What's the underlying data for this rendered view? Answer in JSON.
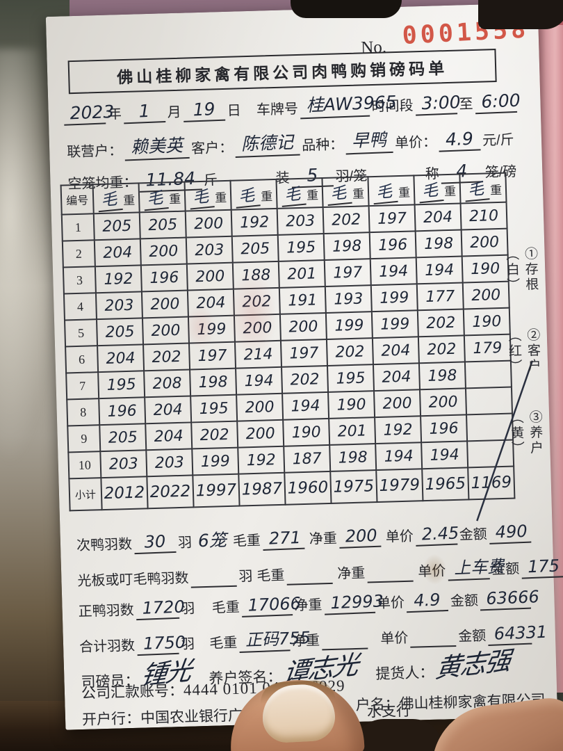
{
  "serial": {
    "label": "No.",
    "number": "0001558"
  },
  "title": "佛山桂柳家禽有限公司肉鸭购销磅码单",
  "colors": {
    "stamp_red": "#cf4736",
    "ink_blue_black": "#1f2738",
    "copy_strip_pink": "#dfa2a8"
  },
  "field_lines": [
    {
      "name": "date-plate-line",
      "segments": [
        {
          "k": "h",
          "t": "2023"
        },
        {
          "k": "p",
          "t": "年"
        },
        {
          "k": "h",
          "t": "1"
        },
        {
          "k": "p",
          "t": "月"
        },
        {
          "k": "h",
          "t": "19"
        },
        {
          "k": "p",
          "t": "日"
        },
        {
          "k": "gap"
        },
        {
          "k": "p",
          "t": "车牌号"
        },
        {
          "k": "h",
          "t": "桂AW3965"
        },
        {
          "k": "p",
          "t": "时间段"
        },
        {
          "k": "h",
          "t": "3:00"
        },
        {
          "k": "p",
          "t": "至"
        },
        {
          "k": "h",
          "t": "6:00"
        }
      ]
    },
    {
      "name": "parties-line",
      "segments": [
        {
          "k": "p",
          "t": "联营户："
        },
        {
          "k": "h",
          "t": "赖美英"
        },
        {
          "k": "p",
          "t": "客户："
        },
        {
          "k": "h",
          "t": "陈德记"
        },
        {
          "k": "p",
          "t": "品种："
        },
        {
          "k": "h",
          "t": "早鸭"
        },
        {
          "k": "p",
          "t": "单价："
        },
        {
          "k": "h",
          "t": "4.9"
        },
        {
          "k": "p",
          "t": "元/斤"
        }
      ]
    },
    {
      "name": "cage-line",
      "segments": [
        {
          "k": "p",
          "t": "空笼均重："
        },
        {
          "k": "h",
          "t": "11.84"
        },
        {
          "k": "p",
          "t": "斤"
        },
        {
          "k": "gap"
        },
        {
          "k": "p",
          "t": "装"
        },
        {
          "k": "h",
          "t": "5"
        },
        {
          "k": "p",
          "t": "羽/笼"
        },
        {
          "k": "gap"
        },
        {
          "k": "p",
          "t": "称"
        },
        {
          "k": "h",
          "t": "4"
        },
        {
          "k": "p",
          "t": "笼/磅"
        }
      ]
    }
  ],
  "table": {
    "corner_label": "编号",
    "header_hand": "毛",
    "header_print": "重",
    "columns": 9,
    "rows": [
      {
        "id": "1",
        "values": [
          "205",
          "205",
          "200",
          "192",
          "203",
          "202",
          "197",
          "204",
          "210"
        ]
      },
      {
        "id": "2",
        "values": [
          "204",
          "200",
          "203",
          "205",
          "195",
          "198",
          "196",
          "198",
          "200"
        ]
      },
      {
        "id": "3",
        "values": [
          "192",
          "196",
          "200",
          "188",
          "201",
          "197",
          "194",
          "194",
          "190"
        ]
      },
      {
        "id": "4",
        "values": [
          "203",
          "200",
          "204",
          "202",
          "191",
          "193",
          "199",
          "177",
          "200"
        ]
      },
      {
        "id": "5",
        "values": [
          "205",
          "200",
          "199",
          "200",
          "200",
          "199",
          "199",
          "202",
          "190"
        ]
      },
      {
        "id": "6",
        "values": [
          "204",
          "202",
          "197",
          "214",
          "197",
          "202",
          "204",
          "202",
          "179"
        ]
      },
      {
        "id": "7",
        "values": [
          "195",
          "208",
          "198",
          "194",
          "202",
          "195",
          "204",
          "198",
          ""
        ]
      },
      {
        "id": "8",
        "values": [
          "196",
          "204",
          "195",
          "200",
          "194",
          "190",
          "200",
          "200",
          ""
        ]
      },
      {
        "id": "9",
        "values": [
          "205",
          "204",
          "202",
          "200",
          "190",
          "201",
          "192",
          "196",
          ""
        ]
      },
      {
        "id": "10",
        "values": [
          "203",
          "203",
          "199",
          "192",
          "187",
          "198",
          "194",
          "194",
          ""
        ]
      }
    ],
    "subtotal": {
      "id": "小计",
      "values": [
        "2012",
        "2022",
        "1997",
        "1987",
        "1960",
        "1975",
        "1979",
        "1965",
        "1169"
      ]
    }
  },
  "side_labels": [
    "①存根（白）",
    "②客户（红）",
    "③养户（黄）"
  ],
  "summary_lines": [
    {
      "name": "cull-duck-line",
      "segments": [
        {
          "k": "p",
          "t": "次鸭羽数"
        },
        {
          "k": "h",
          "t": "30"
        },
        {
          "k": "p",
          "t": "羽"
        },
        {
          "k": "hp",
          "t": "6笼"
        },
        {
          "k": "p",
          "t": "毛重"
        },
        {
          "k": "h",
          "t": "271"
        },
        {
          "k": "gap"
        },
        {
          "k": "p",
          "t": "净重"
        },
        {
          "k": "h",
          "t": "200"
        },
        {
          "k": "gap"
        },
        {
          "k": "p",
          "t": "单价"
        },
        {
          "k": "h",
          "t": "2.45"
        },
        {
          "k": "p",
          "t": "金额"
        },
        {
          "k": "h",
          "t": "490"
        }
      ]
    },
    {
      "name": "bare-duck-line",
      "segments": [
        {
          "k": "p",
          "t": "光板或叮毛鸭羽数"
        },
        {
          "k": "u"
        },
        {
          "k": "p",
          "t": "羽"
        },
        {
          "k": "p",
          "t": "毛重"
        },
        {
          "k": "u"
        },
        {
          "k": "gap"
        },
        {
          "k": "p",
          "t": "净重"
        },
        {
          "k": "u"
        },
        {
          "k": "gap"
        },
        {
          "k": "p",
          "t": "单价"
        },
        {
          "k": "h",
          "t": "上车费"
        },
        {
          "k": "p",
          "t": "金额"
        },
        {
          "k": "h",
          "t": "175"
        }
      ]
    },
    {
      "name": "good-duck-line",
      "segments": [
        {
          "k": "p",
          "t": "正鸭羽数"
        },
        {
          "k": "h",
          "t": "1720"
        },
        {
          "k": "p",
          "t": "羽"
        },
        {
          "k": "gap"
        },
        {
          "k": "p",
          "t": "毛重"
        },
        {
          "k": "h",
          "t": "17066"
        },
        {
          "k": "p",
          "t": "净重"
        },
        {
          "k": "h",
          "t": "12993"
        },
        {
          "k": "p",
          "t": "单价"
        },
        {
          "k": "h",
          "t": "4.9"
        },
        {
          "k": "p",
          "t": "金额"
        },
        {
          "k": "h",
          "t": "63666"
        }
      ]
    },
    {
      "name": "total-line",
      "segments": [
        {
          "k": "p",
          "t": "合计羽数"
        },
        {
          "k": "h",
          "t": "1750"
        },
        {
          "k": "p",
          "t": "羽"
        },
        {
          "k": "gap"
        },
        {
          "k": "p",
          "t": "毛重"
        },
        {
          "k": "h",
          "t": "正码755"
        },
        {
          "k": "p",
          "t": "净重"
        },
        {
          "k": "u"
        },
        {
          "k": "gap"
        },
        {
          "k": "p",
          "t": "单价"
        },
        {
          "k": "u"
        },
        {
          "k": "p",
          "t": "金额"
        },
        {
          "k": "h",
          "t": "64331"
        }
      ]
    }
  ],
  "signatures": [
    {
      "label": "司磅员：",
      "name": "锺光"
    },
    {
      "label": "养户签名：",
      "name": "谭志光"
    },
    {
      "label": "提货人：",
      "name": "黄志强"
    }
  ],
  "bank": {
    "account_label": "公司汇款账号：",
    "account": "4444 0101 0400 16929",
    "holder_label": "户名：",
    "holder": "佛山桂柳家禽有限公司",
    "bank_label": "开户行：",
    "bank_part1": "中国农业银行广东省佛山市",
    "bank_part2": "水支行"
  }
}
